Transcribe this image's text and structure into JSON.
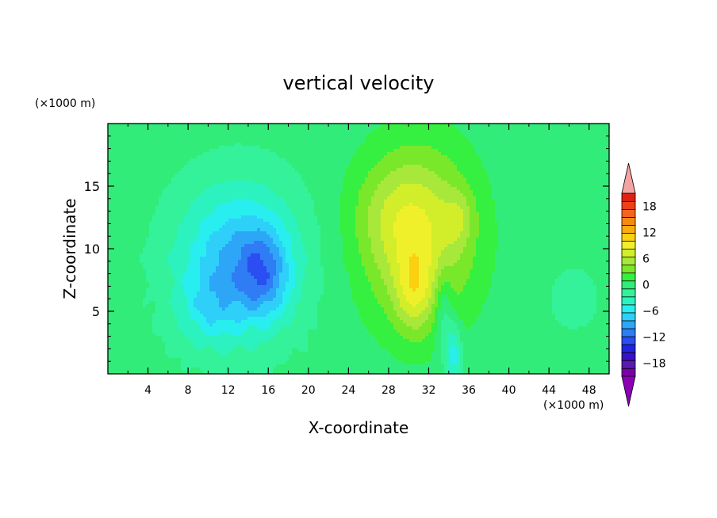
{
  "chart_data": {
    "type": "heatmap",
    "title": "vertical velocity",
    "xlabel": "X-coordinate",
    "ylabel": "Z-coordinate",
    "x_unit": "(×1000 m)",
    "y_unit": "(×1000 m)",
    "xlim": [
      0,
      50
    ],
    "ylim": [
      0,
      20
    ],
    "x_ticks": [
      4,
      8,
      12,
      16,
      20,
      24,
      28,
      32,
      36,
      40,
      44,
      48
    ],
    "y_ticks": [
      5,
      10,
      15
    ],
    "grid": false,
    "colorbar": {
      "placement": "right",
      "min": -21,
      "max": 21,
      "step": 2,
      "tick_values": [
        -18,
        -12,
        -6,
        0,
        6,
        12,
        18
      ],
      "tick_labels": [
        "−18",
        "−12",
        "−6",
        "0",
        "6",
        "12",
        "18"
      ],
      "extend": "both",
      "colors": [
        "#7a00a8",
        "#5a1ab0",
        "#3a10c8",
        "#2222e0",
        "#2a4ef2",
        "#2f7cf5",
        "#2ea6f8",
        "#2ed0fa",
        "#28eef0",
        "#2cf2c0",
        "#33f29a",
        "#32ec7a",
        "#35f040",
        "#7ae82a",
        "#a8e83a",
        "#d2ee2a",
        "#f0f02a",
        "#fad010",
        "#f8ac10",
        "#f58a10",
        "#f26520",
        "#ee4018",
        "#e02012"
      ],
      "extend_low_color": "#8a00b5",
      "extend_high_color": "#f4a3a3"
    },
    "features": [
      {
        "kind": "downdraft",
        "x_center": 14,
        "z_center": 8.5,
        "x_extent": [
          6,
          20
        ],
        "z_extent": [
          2,
          17
        ],
        "min_value": -15
      },
      {
        "kind": "updraft",
        "x_center": 31,
        "z_center": 7,
        "x_extent": [
          22,
          42
        ],
        "z_extent": [
          0,
          19
        ],
        "max_value": 17
      },
      {
        "kind": "updraft",
        "x_center": 35,
        "z_center": 12.5,
        "max_value": 11
      }
    ]
  }
}
